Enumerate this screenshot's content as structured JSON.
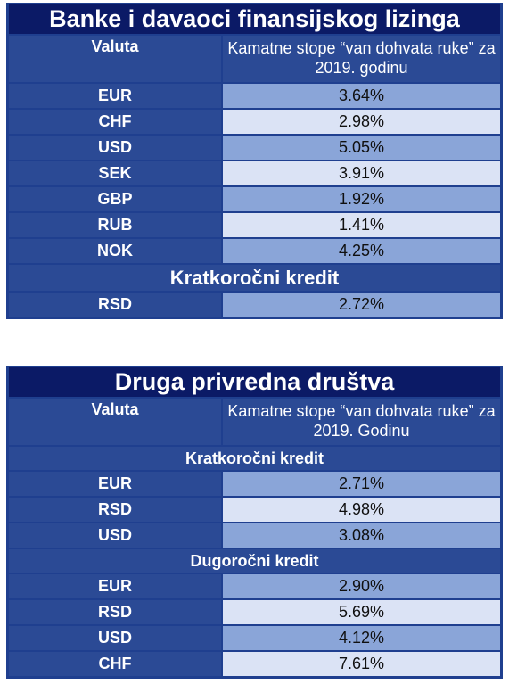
{
  "table1": {
    "title": "Banke i davaoci finansijskog lizinga",
    "col_currency": "Valuta",
    "col_rate": "Kamatne stope “van dohvata ruke” za 2019. godinu",
    "rows": [
      {
        "currency": "EUR",
        "rate": "3.64%"
      },
      {
        "currency": "CHF",
        "rate": "2.98%"
      },
      {
        "currency": "USD",
        "rate": "5.05%"
      },
      {
        "currency": "SEK",
        "rate": "3.91%"
      },
      {
        "currency": "GBP",
        "rate": "1.92%"
      },
      {
        "currency": "RUB",
        "rate": "1.41%"
      },
      {
        "currency": "NOK",
        "rate": "4.25%"
      }
    ],
    "section_short": "Kratkoročni kredit",
    "short_rows": [
      {
        "currency": "RSD",
        "rate": "2.72%"
      }
    ]
  },
  "table2": {
    "title": "Druga privredna društva",
    "col_currency": "Valuta",
    "col_rate": "Kamatne stope “van dohvata ruke” za 2019. Godinu",
    "section_short": "Kratkoročni kredit",
    "short_rows": [
      {
        "currency": "EUR",
        "rate": "2.71%"
      },
      {
        "currency": "RSD",
        "rate": "4.98%"
      },
      {
        "currency": "USD",
        "rate": "3.08%"
      }
    ],
    "section_long": "Dugoročni kredit",
    "long_rows": [
      {
        "currency": "EUR",
        "rate": "2.90%"
      },
      {
        "currency": "RSD",
        "rate": "5.69%"
      },
      {
        "currency": "USD",
        "rate": "4.12%"
      },
      {
        "currency": "CHF",
        "rate": "7.61%"
      }
    ]
  },
  "colors": {
    "title_bg": "#0b1a66",
    "cell_dark": "#2b4a95",
    "value_blue": "#8aa5d8",
    "value_light": "#dbe3f5"
  }
}
